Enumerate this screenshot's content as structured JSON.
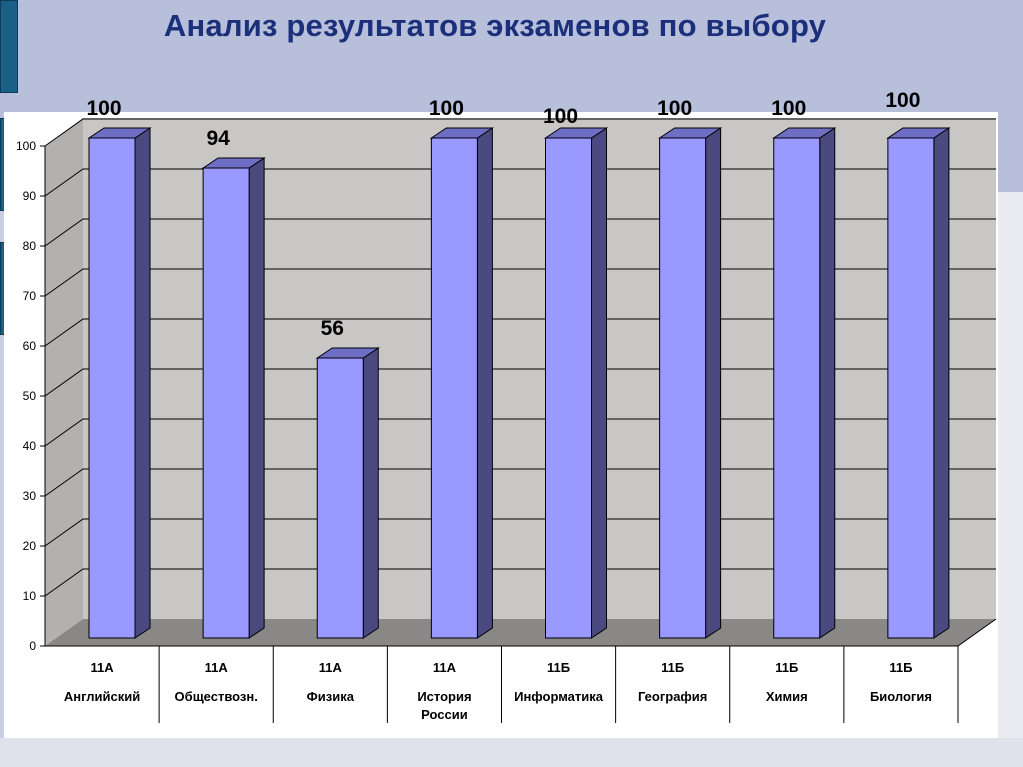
{
  "title": "Анализ результатов экзаменов по выбору",
  "chart_data": {
    "type": "bar",
    "categories": [
      {
        "class": "11А",
        "subject": [
          "Английский"
        ]
      },
      {
        "class": "11А",
        "subject": [
          "Обществозн."
        ]
      },
      {
        "class": "11А",
        "subject": [
          "Физика"
        ]
      },
      {
        "class": "11А",
        "subject": [
          "История",
          "России"
        ]
      },
      {
        "class": "11Б",
        "subject": [
          "Информатика"
        ]
      },
      {
        "class": "11Б",
        "subject": [
          "География"
        ]
      },
      {
        "class": "11Б",
        "subject": [
          "Химия"
        ]
      },
      {
        "class": "11Б",
        "subject": [
          "Биология"
        ]
      }
    ],
    "values": [
      100,
      94,
      56,
      100,
      100,
      100,
      100,
      100
    ],
    "data_labels": [
      "100",
      "94",
      "56",
      "100",
      "100",
      "100",
      "100",
      "100"
    ],
    "ylim": [
      0,
      100
    ],
    "yticks": [
      0,
      10,
      20,
      30,
      40,
      50,
      60,
      70,
      80,
      90,
      100
    ],
    "grid": true,
    "legend": "none",
    "colors": {
      "bar_front": "#9999ff",
      "bar_side": "#4a4a80",
      "bar_top": "#6e6ec4",
      "back_wall": "#c9c6c6",
      "side_wall": "#b3b0b0",
      "floor": "#8a8787",
      "grid": "#000000"
    }
  }
}
